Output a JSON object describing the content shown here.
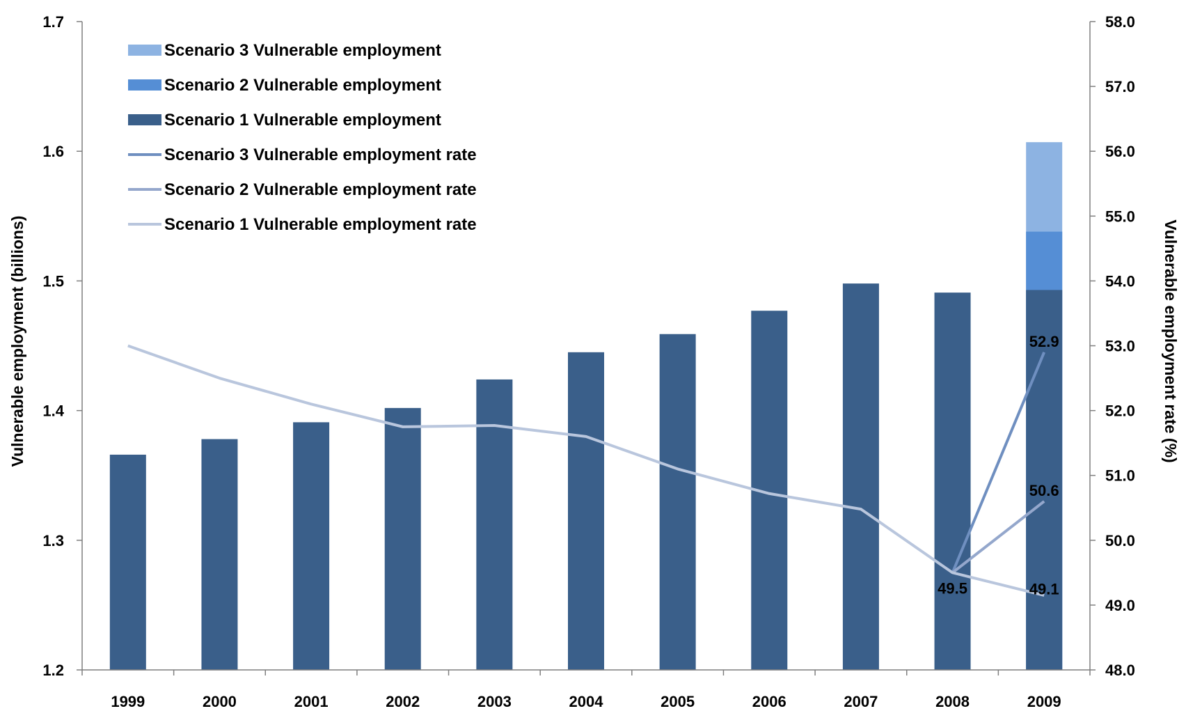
{
  "chart_data": {
    "type": "bar",
    "categories": [
      "1999",
      "2000",
      "2001",
      "2002",
      "2003",
      "2004",
      "2005",
      "2006",
      "2007",
      "2008",
      "2009"
    ],
    "ylabel": "Vulnerable employment (billions)",
    "y2label": "Vulnerable employment rate (%)",
    "ylim": [
      1.2,
      1.7
    ],
    "y2lim": [
      48.0,
      58.0
    ],
    "yticks": [
      "1.2",
      "1.3",
      "1.4",
      "1.5",
      "1.6",
      "1.7"
    ],
    "y2ticks": [
      "48.0",
      "49.0",
      "50.0",
      "51.0",
      "52.0",
      "53.0",
      "54.0",
      "55.0",
      "56.0",
      "57.0",
      "58.0"
    ],
    "grid": false,
    "legend_position": "top-left",
    "bar_series": [
      {
        "name": "Scenario 3 Vulnerable employment",
        "color": "#8db3e2",
        "values": [
          null,
          null,
          null,
          null,
          null,
          null,
          null,
          null,
          null,
          null,
          1.607
        ]
      },
      {
        "name": "Scenario 2 Vulnerable employment",
        "color": "#558ed5",
        "values": [
          null,
          null,
          null,
          null,
          null,
          null,
          null,
          null,
          null,
          null,
          1.538
        ]
      },
      {
        "name": "Scenario 1 Vulnerable employment",
        "color": "#3a5f8a",
        "values": [
          1.366,
          1.378,
          1.391,
          1.402,
          1.424,
          1.445,
          1.459,
          1.477,
          1.498,
          1.491,
          1.493
        ]
      }
    ],
    "line_series": [
      {
        "name": "Scenario 3 Vulnerable employment rate",
        "color": "#6f8fc0",
        "values": [
          null,
          null,
          null,
          null,
          null,
          null,
          null,
          null,
          null,
          49.5,
          52.9
        ]
      },
      {
        "name": "Scenario 2 Vulnerable employment rate",
        "color": "#94a7cc",
        "values": [
          null,
          null,
          null,
          null,
          null,
          null,
          null,
          null,
          null,
          49.5,
          50.6
        ]
      },
      {
        "name": "Scenario 1 Vulnerable employment rate",
        "color": "#b9c6dd",
        "values": [
          53.0,
          52.5,
          52.1,
          51.75,
          51.77,
          51.6,
          51.1,
          50.72,
          50.48,
          49.5,
          49.15
        ]
      }
    ],
    "data_labels": [
      {
        "category": "2009",
        "text": "52.9",
        "value": 52.9
      },
      {
        "category": "2009",
        "text": "50.6",
        "value": 50.6
      },
      {
        "category": "2008",
        "text": "49.5",
        "value": 49.5
      },
      {
        "category": "2009",
        "text": "49.1",
        "value": 49.1
      }
    ]
  }
}
